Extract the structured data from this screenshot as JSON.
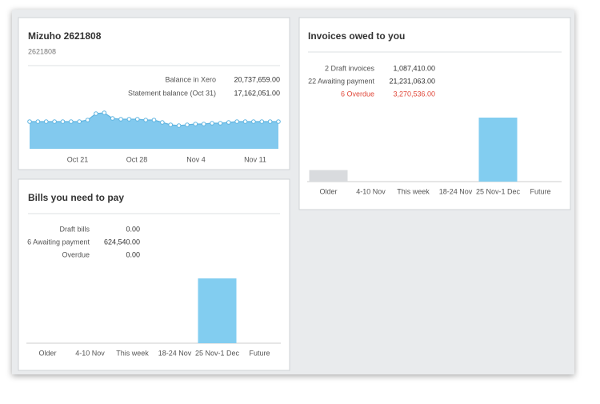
{
  "bank_card": {
    "title": "Mizuho 2621808",
    "subtitle": "2621808",
    "rows": [
      {
        "label": "Balance in Xero",
        "value": "20,737,659.00"
      },
      {
        "label": "Statement balance (Oct 31)",
        "value": "17,162,051.00"
      }
    ],
    "chart": {
      "type": "area",
      "x_labels": [
        "Oct 21",
        "Oct 28",
        "Nov 4",
        "Nov 11"
      ],
      "values": [
        34,
        34,
        34,
        34,
        34,
        34,
        34,
        36,
        44,
        45,
        38,
        37,
        37,
        37,
        36,
        36,
        33,
        30,
        29,
        30,
        31,
        31,
        32,
        32,
        33,
        34,
        34,
        34,
        34,
        34,
        34
      ],
      "color": "#82c9ee",
      "ylim": [
        0,
        50
      ]
    }
  },
  "invoices_card": {
    "title": "Invoices owed to you",
    "rows": [
      {
        "label": "2 Draft invoices",
        "value": "1,087,410.00"
      },
      {
        "label": "22 Awaiting payment",
        "value": "21,231,063.00"
      },
      {
        "label": "6 Overdue",
        "value": "3,270,536.00",
        "color": "#e0483a"
      }
    ],
    "chart": {
      "type": "bar",
      "categories": [
        "Older",
        "4-10 Nov",
        "This week",
        "18-24 Nov",
        "25 Nov-1 Dec",
        "Future"
      ],
      "values": [
        18,
        0,
        0,
        0,
        100,
        0
      ],
      "colors": [
        "#d9dbde",
        "#82cdf0",
        "#82cdf0",
        "#82cdf0",
        "#82cdf0",
        "#82cdf0"
      ],
      "ylim": [
        0,
        100
      ]
    }
  },
  "bills_card": {
    "title": "Bills you need to pay",
    "rows": [
      {
        "label": "Draft bills",
        "value": "0.00"
      },
      {
        "label": "6 Awaiting payment",
        "value": "624,540.00"
      },
      {
        "label": "Overdue",
        "value": "0.00"
      }
    ],
    "chart": {
      "type": "bar",
      "categories": [
        "Older",
        "4-10 Nov",
        "This week",
        "18-24 Nov",
        "25 Nov-1 Dec",
        "Future"
      ],
      "values": [
        0,
        0,
        0,
        0,
        100,
        0
      ],
      "colors": [
        "#d9dbde",
        "#82cdf0",
        "#82cdf0",
        "#82cdf0",
        "#82cdf0",
        "#82cdf0"
      ],
      "ylim": [
        0,
        100
      ]
    }
  }
}
